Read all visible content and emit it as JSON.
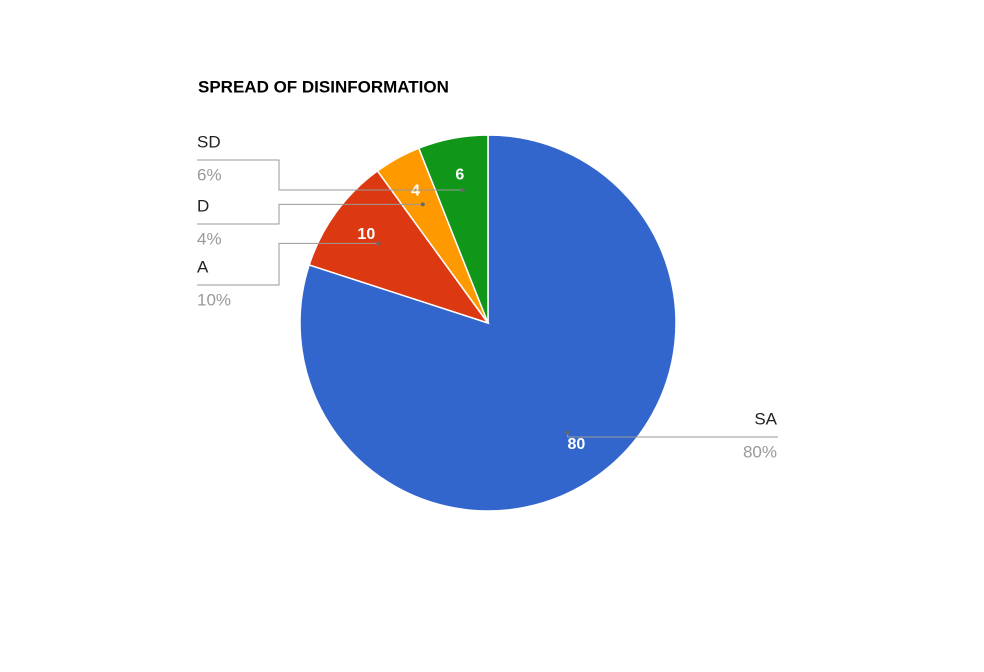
{
  "chart_data": {
    "type": "pie",
    "title": "SPREAD OF DISINFORMATION",
    "categories": [
      "SA",
      "A",
      "D",
      "SD"
    ],
    "values": [
      80,
      10,
      4,
      6
    ],
    "value_labels": [
      "80%",
      "10%",
      "4%",
      "6%"
    ],
    "colors": [
      "#3366cc",
      "#dc3912",
      "#ff9900",
      "#109618"
    ]
  }
}
